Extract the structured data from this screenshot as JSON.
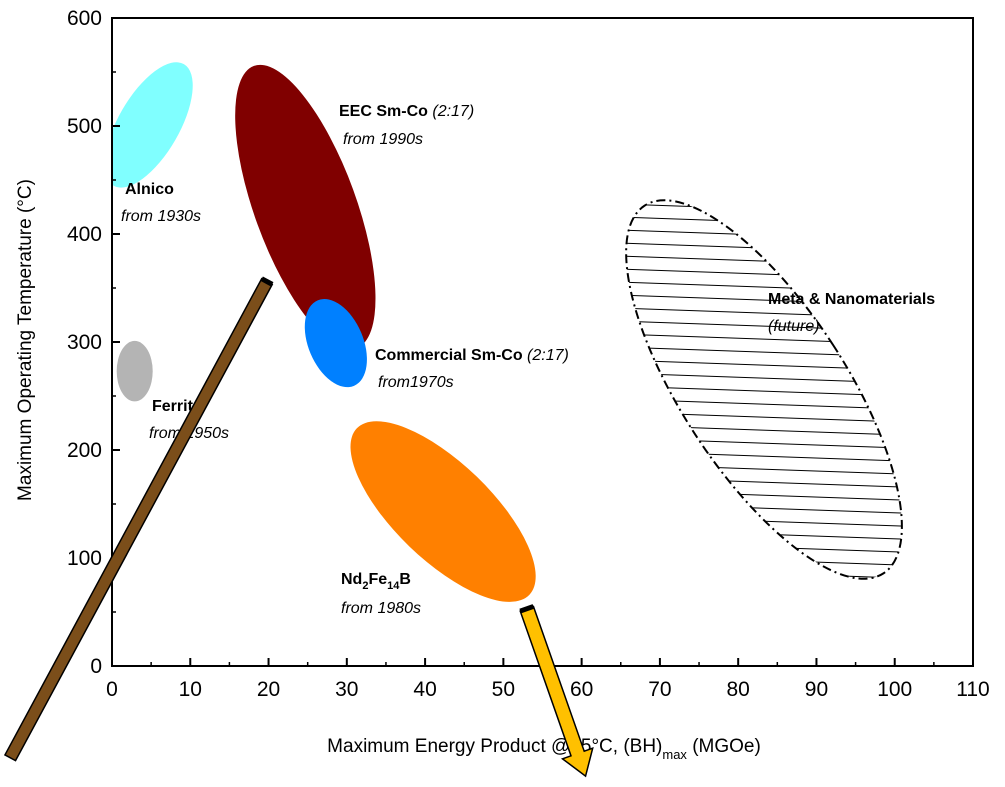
{
  "chart_data": {
    "type": "scatter",
    "title": "",
    "xlabel": {
      "main": "Maximum Energy Product @25°C, (BH)",
      "sub": "max",
      "unit": " (MGOe)"
    },
    "ylabel": "Maximum Operating Temperature (°C)",
    "xlim": [
      0,
      110
    ],
    "ylim": [
      0,
      600
    ],
    "xticks": [
      0,
      10,
      20,
      30,
      40,
      50,
      60,
      70,
      80,
      90,
      100,
      110
    ],
    "yticks": [
      0,
      100,
      200,
      300,
      400,
      500,
      600
    ],
    "grid": false,
    "regions": [
      {
        "name": "Alnico",
        "era": "from 1930s",
        "color": "#80ffff",
        "cx": 4.7,
        "cy": 501,
        "rx": 3.9,
        "ry": 65,
        "rot": 30
      },
      {
        "name": "EEC Sm-Co",
        "spec": "(2:17)",
        "era": "from 1990s",
        "color": "#800000",
        "cx": 24.7,
        "cy": 425,
        "rx": 6.5,
        "ry": 139,
        "rot": -20
      },
      {
        "name": "Commercial Sm-Co",
        "spec": "(2:17)",
        "era": "from1970s",
        "color": "#0080ff",
        "cx": 28.6,
        "cy": 299,
        "rx": 3.5,
        "ry": 43,
        "rot": -23
      },
      {
        "name": "Ferrite",
        "era": "from 1950s",
        "color": "#b4b4b4",
        "cx": 2.9,
        "cy": 273,
        "rx": 2.3,
        "ry": 28,
        "rot": 0
      },
      {
        "name": "Nd2Fe14B",
        "era": "from 1980s",
        "color": "#ff8000",
        "cx": 42.3,
        "cy": 143,
        "rx": 6.2,
        "ry": 111,
        "rot": -46
      },
      {
        "name": "Meta & Nanomaterials",
        "era": "(future)",
        "color": "#000000",
        "cx": 83.3,
        "cy": 256,
        "rx": 10.5,
        "ry": 203,
        "rot": -33,
        "pattern": "hatched-dashdot"
      }
    ],
    "arrows": [
      {
        "color": "#7b4e1a",
        "from": [
          19.8,
          356
        ],
        "to": [
          -13,
          -85
        ]
      },
      {
        "color": "#ffc000",
        "from": [
          53,
          53
        ],
        "to": [
          60.5,
          -102
        ]
      }
    ]
  }
}
